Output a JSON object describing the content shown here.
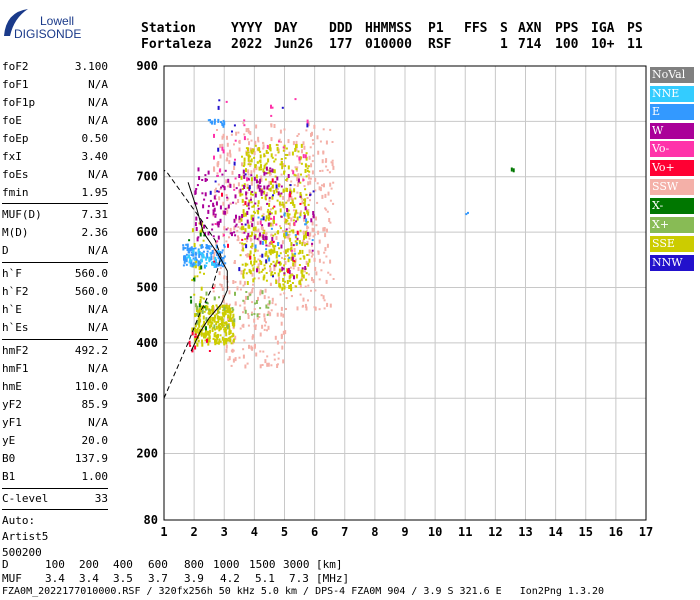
{
  "logo": {
    "line1": "Lowell",
    "line2": "DIGISONDE"
  },
  "header": {
    "labels": [
      "Station",
      "YYYY",
      "DAY",
      "DDD",
      "HHMMSS",
      "P1",
      "FFS",
      "S",
      "AXN",
      "PPS",
      "IGA",
      "PS"
    ],
    "values": [
      "Fortaleza",
      "2022",
      "Jun26",
      "177",
      "010000",
      "RSF",
      "",
      "1",
      "714",
      "100",
      "10+",
      "11"
    ]
  },
  "params": {
    "group1": [
      {
        "name": "foF2",
        "value": "3.100"
      },
      {
        "name": "foF1",
        "value": "N/A"
      },
      {
        "name": "foF1p",
        "value": "N/A"
      },
      {
        "name": "foE",
        "value": "N/A"
      },
      {
        "name": "foEp",
        "value": "0.50"
      },
      {
        "name": "fxI",
        "value": "3.40"
      },
      {
        "name": "foEs",
        "value": "N/A"
      },
      {
        "name": "fmin",
        "value": "1.95"
      }
    ],
    "group2": [
      {
        "name": "MUF(D)",
        "value": "7.31"
      },
      {
        "name": "M(D)",
        "value": "2.36"
      },
      {
        "name": "D",
        "value": "N/A"
      }
    ],
    "group3": [
      {
        "name": "h`F",
        "value": "560.0"
      },
      {
        "name": "h`F2",
        "value": "560.0"
      },
      {
        "name": "h`E",
        "value": "N/A"
      },
      {
        "name": "h`Es",
        "value": "N/A"
      }
    ],
    "group4": [
      {
        "name": "hmF2",
        "value": "492.2"
      },
      {
        "name": "hmF1",
        "value": "N/A"
      },
      {
        "name": "hmE",
        "value": "110.0"
      },
      {
        "name": "yF2",
        "value": "85.9"
      },
      {
        "name": "yF1",
        "value": "N/A"
      },
      {
        "name": "yE",
        "value": "20.0"
      },
      {
        "name": "B0",
        "value": "137.9"
      },
      {
        "name": "B1",
        "value": "1.00"
      }
    ],
    "group5": [
      {
        "name": "C-level",
        "value": "33"
      }
    ],
    "autoscale": [
      "Auto:",
      "Artist5",
      "500200"
    ]
  },
  "legend": [
    {
      "label": "NoVal",
      "color": "#808080"
    },
    {
      "label": "NNE",
      "color": "#33ccff"
    },
    {
      "label": "E",
      "color": "#3399ff"
    },
    {
      "label": "W",
      "color": "#aa0099"
    },
    {
      "label": "Vo-",
      "color": "#ff33aa"
    },
    {
      "label": "Vo+",
      "color": "#ff0033"
    },
    {
      "label": "SSW",
      "color": "#f4b0a8"
    },
    {
      "label": "X-",
      "color": "#007700"
    },
    {
      "label": "X+",
      "color": "#88bb55"
    },
    {
      "label": "SSE",
      "color": "#cccc00"
    },
    {
      "label": "NNW",
      "color": "#2211cc"
    }
  ],
  "chart_data": {
    "type": "scatter",
    "xlim": [
      1,
      17
    ],
    "ylim": [
      80,
      900
    ],
    "x_ticks": [
      1,
      2,
      3,
      4,
      5,
      6,
      7,
      8,
      9,
      10,
      11,
      12,
      13,
      14,
      15,
      16,
      17
    ],
    "y_ticks": [
      80,
      200,
      300,
      400,
      500,
      600,
      700,
      800,
      900
    ],
    "grid": true,
    "series": [
      {
        "name": "SSE",
        "color": "#cccc00",
        "clusters": [
          {
            "x": [
              2.0,
              3.3
            ],
            "y": [
              400,
              470
            ],
            "n": 260
          },
          {
            "x": [
              3.5,
              5.8
            ],
            "y": [
              500,
              760
            ],
            "n": 420
          },
          {
            "x": [
              1.9,
              2.3
            ],
            "y": [
              420,
              620
            ],
            "n": 40
          }
        ]
      },
      {
        "name": "SSW",
        "color": "#f4b0a8",
        "clusters": [
          {
            "x": [
              2.6,
              6.6
            ],
            "y": [
              460,
              800
            ],
            "n": 520
          },
          {
            "x": [
              3.0,
              5.0
            ],
            "y": [
              360,
              460
            ],
            "n": 90
          }
        ]
      },
      {
        "name": "W",
        "color": "#aa0099",
        "clusters": [
          {
            "x": [
              2.0,
              4.5
            ],
            "y": [
              590,
              720
            ],
            "n": 130
          },
          {
            "x": [
              4.0,
              6.0
            ],
            "y": [
              520,
              720
            ],
            "n": 50
          }
        ]
      },
      {
        "name": "E",
        "color": "#3399ff",
        "clusters": [
          {
            "x": [
              1.6,
              3.0
            ],
            "y": [
              540,
              580
            ],
            "n": 110
          },
          {
            "x": [
              2.4,
              3.0
            ],
            "y": [
              795,
              805
            ],
            "n": 14
          },
          {
            "x": [
              4.0,
              6.0
            ],
            "y": [
              550,
              650
            ],
            "n": 20
          },
          {
            "x": [
              11.0,
              11.1
            ],
            "y": [
              633,
              639
            ],
            "n": 2
          }
        ]
      },
      {
        "name": "NNE",
        "color": "#33ccff",
        "clusters": [
          {
            "x": [
              1.7,
              2.8
            ],
            "y": [
              540,
              570
            ],
            "n": 30
          }
        ]
      },
      {
        "name": "Vo-",
        "color": "#ff33aa",
        "clusters": [
          {
            "x": [
              2.5,
              5.8
            ],
            "y": [
              560,
              860
            ],
            "n": 40
          }
        ]
      },
      {
        "name": "Vo+",
        "color": "#ff0033",
        "clusters": [
          {
            "x": [
              1.8,
              2.5
            ],
            "y": [
              380,
              440
            ],
            "n": 10
          },
          {
            "x": [
              2.5,
              5.5
            ],
            "y": [
              500,
              700
            ],
            "n": 15
          }
        ]
      },
      {
        "name": "X-",
        "color": "#007700",
        "clusters": [
          {
            "x": [
              1.8,
              2.4
            ],
            "y": [
              420,
              600
            ],
            "n": 12
          },
          {
            "x": [
              12.5,
              12.6
            ],
            "y": [
              713,
              719
            ],
            "n": 2
          }
        ]
      },
      {
        "name": "X+",
        "color": "#88bb55",
        "clusters": [
          {
            "x": [
              2.0,
              4.5
            ],
            "y": [
              430,
              500
            ],
            "n": 40
          }
        ]
      },
      {
        "name": "NNW",
        "color": "#2211cc",
        "clusters": [
          {
            "x": [
              2.5,
              6.0
            ],
            "y": [
              520,
              860
            ],
            "n": 25
          }
        ]
      }
    ],
    "profile_dashed": [
      [
        1.0,
        300
      ],
      [
        1.4,
        350
      ],
      [
        1.8,
        400
      ],
      [
        2.2,
        455
      ],
      [
        2.6,
        500
      ],
      [
        2.9,
        555
      ],
      [
        2.7,
        585
      ],
      [
        2.2,
        625
      ],
      [
        1.6,
        670
      ],
      [
        1.1,
        708
      ],
      [
        1.0,
        712
      ]
    ],
    "trace_solid": [
      [
        1.9,
        385
      ],
      [
        2.2,
        420
      ],
      [
        2.5,
        445
      ],
      [
        2.9,
        470
      ],
      [
        3.1,
        495
      ],
      [
        3.1,
        530
      ],
      [
        2.8,
        560
      ],
      [
        2.3,
        600
      ],
      [
        2.1,
        640
      ],
      [
        1.8,
        690
      ]
    ]
  },
  "footer": {
    "d_label": "D",
    "d_values": [
      "100",
      "200",
      "400",
      "600",
      "800",
      "1000",
      "1500",
      "3000",
      "[km]"
    ],
    "muf_label": "MUF",
    "muf_values": [
      "3.4",
      "3.4",
      "3.5",
      "3.7",
      "3.9",
      "4.2",
      "5.1",
      "7.3",
      "[MHz]"
    ],
    "info": "FZA0M_2022177010000.RSF / 320fx256h 50 kHz 5.0 km / DPS-4 FZA0M 904 / 3.9 S 321.6 E   Ion2Png 1.3.20"
  }
}
